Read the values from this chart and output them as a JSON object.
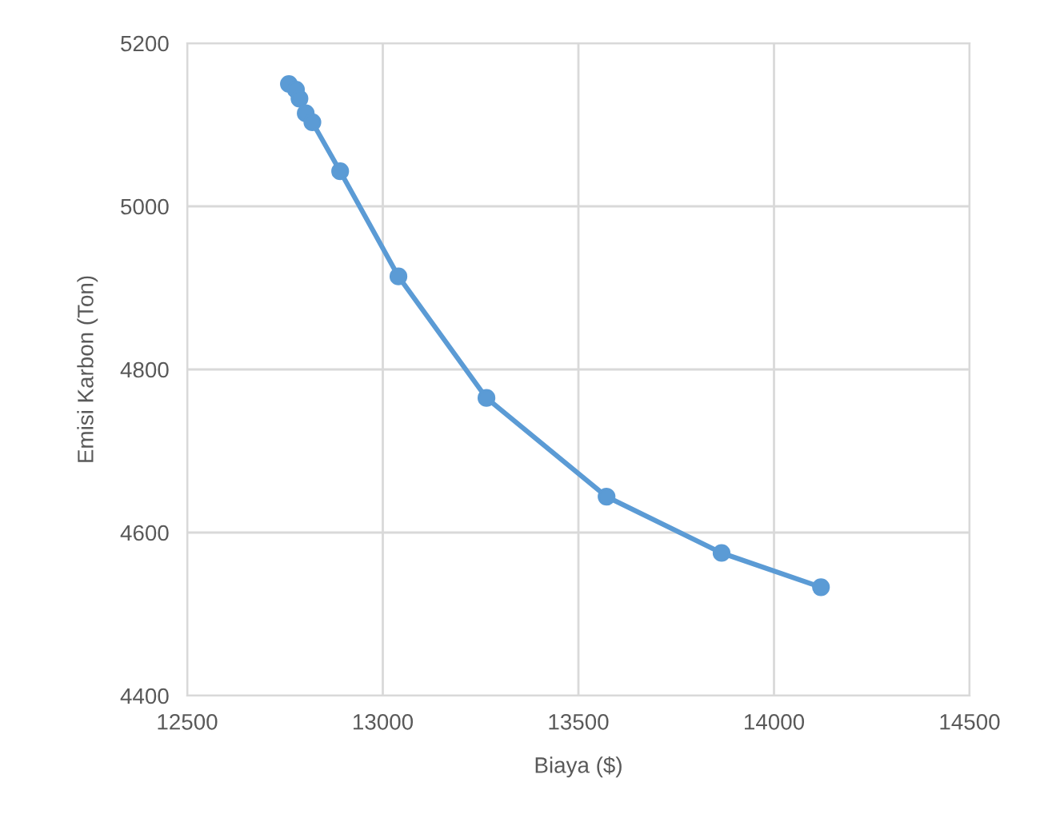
{
  "chart_data": {
    "type": "line",
    "xlabel": "Biaya ($)",
    "ylabel": "Emisi Karbon (Ton)",
    "x": [
      12760,
      12778,
      12787,
      12803,
      12820,
      12891,
      13040,
      13265,
      13572,
      13866,
      14120
    ],
    "series": [
      {
        "color": "#5b9bd5",
        "values": [
          5150,
          5143,
          5132,
          5114,
          5103,
          5043,
          4914,
          4765,
          4644,
          4575,
          4533
        ]
      }
    ],
    "xlim": [
      12500,
      14500
    ],
    "xticks": [
      12500,
      13000,
      13500,
      14000,
      14500
    ],
    "ylim": [
      4400,
      5200
    ],
    "yticks": [
      4400,
      4600,
      4800,
      5000,
      5200
    ],
    "grid": true,
    "marker": "circle",
    "line_style": "solid"
  }
}
